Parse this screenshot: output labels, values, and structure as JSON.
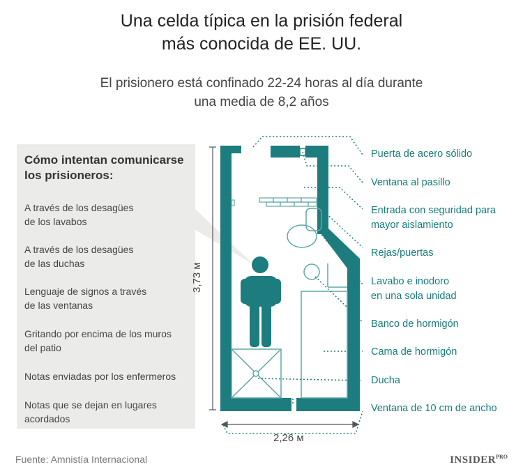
{
  "title_line1": "Una celda típica en la prisión federal",
  "title_line2": "más conocida de EE. UU.",
  "subtitle_line1": "El prisionero está confinado 22-24 horas al día durante",
  "subtitle_line2": "una media de 8,2 años",
  "sidebar": {
    "title_line1": "Cómo intentan comunicarse",
    "title_line2": "los prisioneros:",
    "methods": [
      {
        "line1": "A través de los desagües",
        "line2": "de los lavabos"
      },
      {
        "line1": "A través de los desagües",
        "line2": "de las duchas"
      },
      {
        "line1": "Lenguaje de signos a través",
        "line2": "de las ventanas"
      },
      {
        "line1": "Gritando por encima de los muros",
        "line2": "del patio"
      },
      {
        "line1": "Notas enviadas por los enfermeros",
        "line2": ""
      },
      {
        "line1": "Notas que se dejan en lugares",
        "line2": "acordados"
      }
    ]
  },
  "labels": {
    "door": "Puerta de acero sólido",
    "hall_window": "Ventana al pasillo",
    "entry_line1": "Entrada con seguridad para",
    "entry_line2": "mayor aislamiento",
    "bars": "Rejas/puertas",
    "sink_line1": "Lavabo e inodoro",
    "sink_line2": "en una sola unidad",
    "bench": "Banco de hormigón",
    "bed": "Cama de hormigón",
    "shower": "Ducha",
    "window": "Ventana de 10 cm de ancho"
  },
  "dimensions": {
    "height": "3,73 м",
    "width": "2,26 м"
  },
  "footer": {
    "source": "Fuente: Amnistía Internacional",
    "logo": "INSIDER",
    "logo_suffix": "PRO"
  },
  "colors": {
    "wall": "#1d7c7e",
    "accent_text": "#177c7c",
    "sidebar_bg": "#ebebea"
  }
}
